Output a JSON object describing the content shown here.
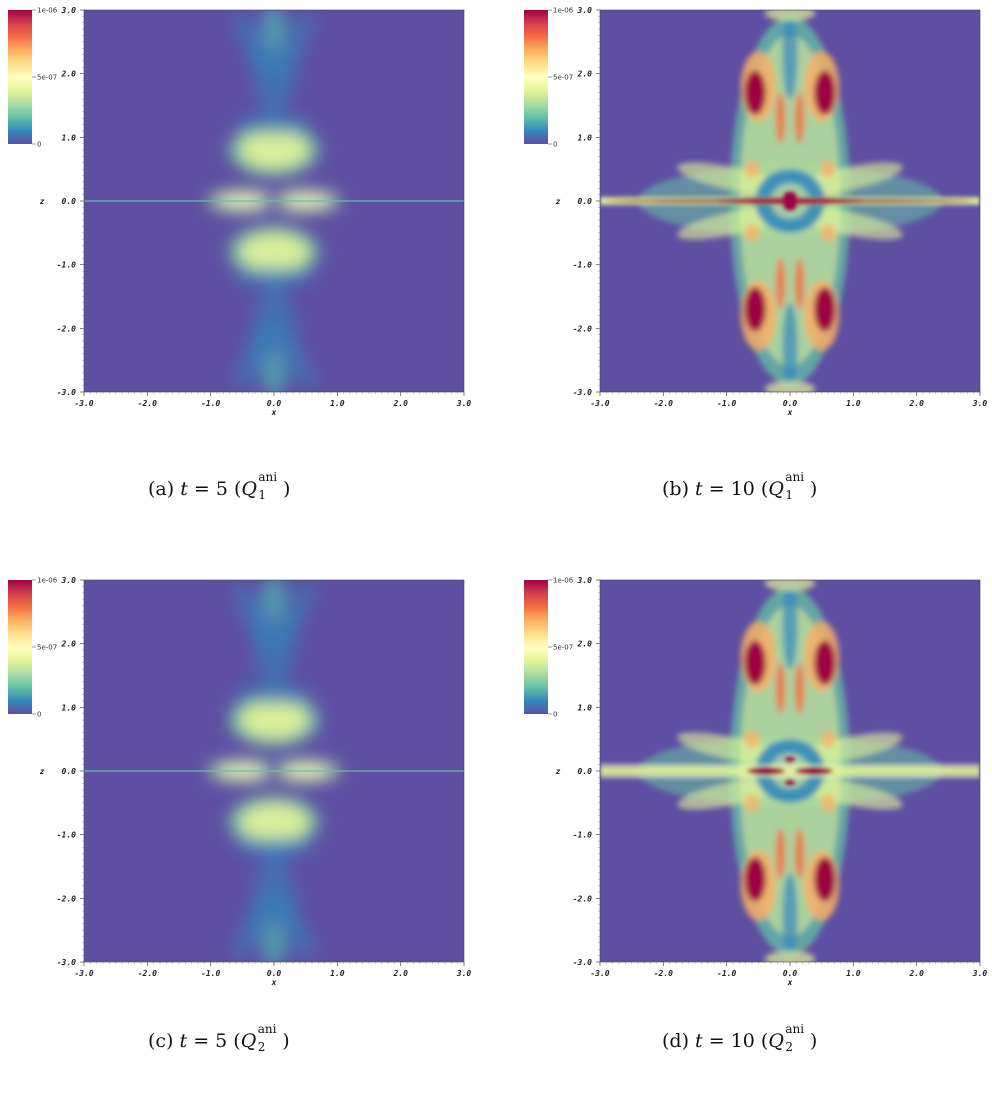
{
  "colorbar": {
    "max_label": "1e-06",
    "mid_label": "5e-07",
    "min_label": "0",
    "colors": [
      "#5e4fa2",
      "#3288bd",
      "#66c2a5",
      "#abdda4",
      "#e6f598",
      "#ffffbf",
      "#fee08b",
      "#fdae61",
      "#f46d43",
      "#d53e4f",
      "#9e0142"
    ]
  },
  "axes": {
    "x_label": "x",
    "z_label": "z",
    "x_ticks": [
      "-3.0",
      "-2.0",
      "-1.0",
      "0.0",
      "1.0",
      "2.0",
      "3.0"
    ],
    "z_ticks": [
      "3.0",
      "2.0",
      "1.0",
      "0.0",
      "-1.0",
      "-2.0",
      "-3.0"
    ]
  },
  "panels": [
    {
      "id": "a",
      "caption_prefix": "(a)",
      "t_value": "5",
      "q_index": "1",
      "q_sup": "ani"
    },
    {
      "id": "b",
      "caption_prefix": "(b)",
      "t_value": "10",
      "q_index": "1",
      "q_sup": "ani"
    },
    {
      "id": "c",
      "caption_prefix": "(c)",
      "t_value": "5",
      "q_index": "2",
      "q_sup": "ani"
    },
    {
      "id": "d",
      "caption_prefix": "(d)",
      "t_value": "10",
      "q_index": "2",
      "q_sup": "ani"
    }
  ],
  "chart_data": [
    {
      "type": "heatmap",
      "panel": "a",
      "xlabel": "x",
      "ylabel": "z",
      "xlim": [
        -3.0,
        3.0
      ],
      "ylim": [
        -3.0,
        3.0
      ],
      "colorbar_range": [
        0,
        1e-06
      ]
    },
    {
      "type": "heatmap",
      "panel": "b",
      "xlabel": "x",
      "ylabel": "z",
      "xlim": [
        -3.0,
        3.0
      ],
      "ylim": [
        -3.0,
        3.0
      ],
      "colorbar_range": [
        0,
        1e-06
      ]
    },
    {
      "type": "heatmap",
      "panel": "c",
      "xlabel": "x",
      "ylabel": "z",
      "xlim": [
        -3.0,
        3.0
      ],
      "ylim": [
        -3.0,
        3.0
      ],
      "colorbar_range": [
        0,
        1e-06
      ]
    },
    {
      "type": "heatmap",
      "panel": "d",
      "xlabel": "x",
      "ylabel": "z",
      "xlim": [
        -3.0,
        3.0
      ],
      "ylim": [
        -3.0,
        3.0
      ],
      "colorbar_range": [
        0,
        1e-06
      ]
    }
  ]
}
